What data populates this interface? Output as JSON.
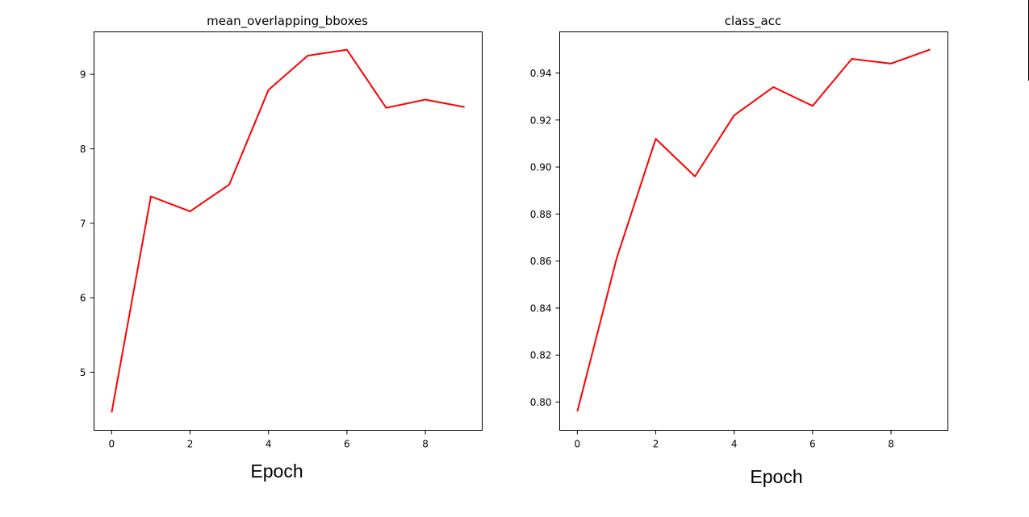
{
  "chart_data": [
    {
      "type": "line",
      "title": "mean_overlapping_bboxes",
      "xlabel": "Epoch",
      "ylabel": "",
      "xlim": [
        -0.45,
        9.45
      ],
      "ylim": [
        4.22,
        9.57
      ],
      "xticks": [
        0,
        2,
        4,
        6,
        8
      ],
      "xtick_labels": [
        "0",
        "2",
        "4",
        "6",
        "8"
      ],
      "yticks": [
        5,
        6,
        7,
        8,
        9
      ],
      "ytick_labels": [
        "5",
        "6",
        "7",
        "8",
        "9"
      ],
      "grid": false,
      "color": "#ff0000",
      "x": [
        0,
        1,
        2,
        3,
        4,
        5,
        6,
        7,
        8,
        9
      ],
      "y": [
        4.46,
        7.36,
        7.16,
        7.52,
        8.79,
        9.25,
        9.33,
        8.55,
        8.66,
        8.56
      ]
    },
    {
      "type": "line",
      "title": "class_acc",
      "xlabel": "Epoch",
      "ylabel": "",
      "xlim": [
        -0.45,
        9.45
      ],
      "ylim": [
        0.788,
        0.9575
      ],
      "xticks": [
        0,
        2,
        4,
        6,
        8
      ],
      "xtick_labels": [
        "0",
        "2",
        "4",
        "6",
        "8"
      ],
      "yticks": [
        0.8,
        0.82,
        0.84,
        0.86,
        0.88,
        0.9,
        0.92,
        0.94
      ],
      "ytick_labels": [
        "0.80",
        "0.82",
        "0.84",
        "0.86",
        "0.88",
        "0.90",
        "0.92",
        "0.94"
      ],
      "grid": false,
      "color": "#ff0000",
      "x": [
        0,
        1,
        2,
        3,
        4,
        5,
        6,
        7,
        8,
        9
      ],
      "y": [
        0.796,
        0.861,
        0.912,
        0.896,
        0.922,
        0.934,
        0.926,
        0.946,
        0.944,
        0.95
      ]
    }
  ]
}
